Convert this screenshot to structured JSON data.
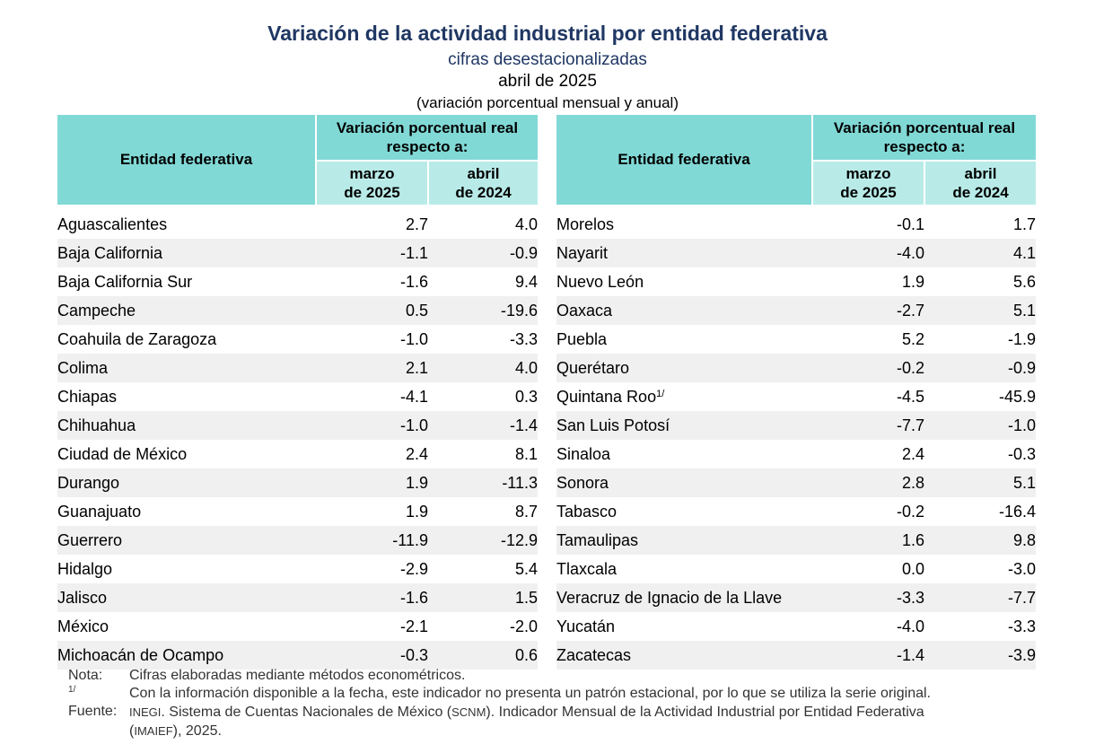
{
  "title": "Variación de la actividad industrial por entidad federativa",
  "subtitle": "cifras desestacionalizadas",
  "date": "abril de 2025",
  "units": "(variación porcentual mensual y anual)",
  "table": {
    "col_entity": "Entidad federativa",
    "col_group_line1": "Variación porcentual real",
    "col_group_line2": "respecto a:",
    "col_march_line1": "marzo",
    "col_march_line2": "de 2025",
    "col_april_line1": "abril",
    "col_april_line2": "de 2024",
    "left_rows": [
      {
        "name": "Aguascalientes",
        "m": "2.7",
        "a": "4.0"
      },
      {
        "name": "Baja California",
        "m": "-1.1",
        "a": "-0.9"
      },
      {
        "name": "Baja California Sur",
        "m": "-1.6",
        "a": "9.4"
      },
      {
        "name": "Campeche",
        "m": "0.5",
        "a": "-19.6"
      },
      {
        "name": "Coahuila de Zaragoza",
        "m": "-1.0",
        "a": "-3.3"
      },
      {
        "name": "Colima",
        "m": "2.1",
        "a": "4.0"
      },
      {
        "name": "Chiapas",
        "m": "-4.1",
        "a": "0.3"
      },
      {
        "name": "Chihuahua",
        "m": "-1.0",
        "a": "-1.4"
      },
      {
        "name": "Ciudad de México",
        "m": "2.4",
        "a": "8.1"
      },
      {
        "name": "Durango",
        "m": "1.9",
        "a": "-11.3"
      },
      {
        "name": "Guanajuato",
        "m": "1.9",
        "a": "8.7"
      },
      {
        "name": "Guerrero",
        "m": "-11.9",
        "a": "-12.9"
      },
      {
        "name": "Hidalgo",
        "m": "-2.9",
        "a": "5.4"
      },
      {
        "name": "Jalisco",
        "m": "-1.6",
        "a": "1.5"
      },
      {
        "name": "México",
        "m": "-2.1",
        "a": "-2.0"
      },
      {
        "name": "Michoacán de Ocampo",
        "m": "-0.3",
        "a": "0.6"
      }
    ],
    "right_rows": [
      {
        "name": "Morelos",
        "m": "-0.1",
        "a": "1.7"
      },
      {
        "name": "Nayarit",
        "m": "-4.0",
        "a": "4.1"
      },
      {
        "name": "Nuevo León",
        "m": "1.9",
        "a": "5.6"
      },
      {
        "name": "Oaxaca",
        "m": "-2.7",
        "a": "5.1"
      },
      {
        "name": "Puebla",
        "m": "5.2",
        "a": "-1.9"
      },
      {
        "name": "Querétaro",
        "m": "-0.2",
        "a": "-0.9"
      },
      {
        "name": "Quintana Roo",
        "fn": "1/",
        "m": "-4.5",
        "a": "-45.9"
      },
      {
        "name": "San Luis Potosí",
        "m": "-7.7",
        "a": "-1.0"
      },
      {
        "name": "Sinaloa",
        "m": "2.4",
        "a": "-0.3"
      },
      {
        "name": "Sonora",
        "m": "2.8",
        "a": "5.1"
      },
      {
        "name": "Tabasco",
        "m": "-0.2",
        "a": "-16.4"
      },
      {
        "name": "Tamaulipas",
        "m": "1.6",
        "a": "9.8"
      },
      {
        "name": "Tlaxcala",
        "m": "0.0",
        "a": "-3.0"
      },
      {
        "name": "Veracruz de Ignacio de la Llave",
        "m": "-3.3",
        "a": "-7.7"
      },
      {
        "name": "Yucatán",
        "m": "-4.0",
        "a": "-3.3"
      },
      {
        "name": "Zacatecas",
        "m": "-1.4",
        "a": "-3.9"
      }
    ]
  },
  "notes": {
    "nota_label": "Nota:",
    "nota_text": "Cifras elaboradas mediante métodos econométricos.",
    "fn_label": "1/",
    "fn_text": "Con la información disponible a la fecha, este indicador no presenta un patrón estacional, por lo que se utiliza la serie original.",
    "fuente_label": "Fuente:",
    "fuente_inegi": "INEGI",
    "fuente_text_1": ". Sistema de Cuentas Nacionales de México (",
    "fuente_scnm": "SCNM",
    "fuente_text_2": "). Indicador Mensual de la Actividad Industrial por Entidad Federativa",
    "fuente_text_3_open": "(",
    "fuente_imaief": "IMAIEF",
    "fuente_text_3_close": "), 2025."
  }
}
